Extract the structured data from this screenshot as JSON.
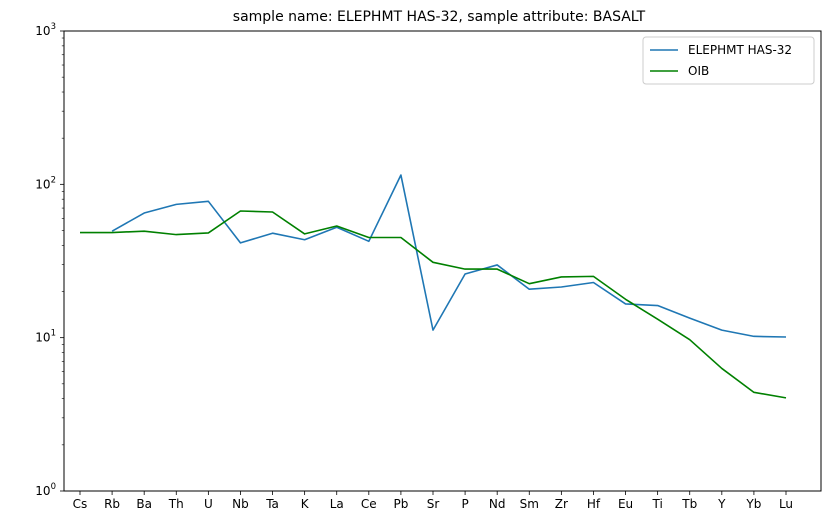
{
  "chart_data": {
    "type": "line",
    "title": "sample name: ELEPHMT HAS-32, sample attribute: BASALT",
    "xlabel": "",
    "ylabel": "",
    "yscale": "log",
    "ylim": [
      1,
      1000
    ],
    "yticks": [
      {
        "value": 1,
        "base": "10",
        "exp": "0"
      },
      {
        "value": 10,
        "base": "10",
        "exp": "1"
      },
      {
        "value": 100,
        "base": "10",
        "exp": "2"
      },
      {
        "value": 1000,
        "base": "10",
        "exp": "3"
      }
    ],
    "categories": [
      "Cs",
      "Rb",
      "Ba",
      "Th",
      "U",
      "Nb",
      "Ta",
      "K",
      "La",
      "Ce",
      "Pb",
      "Sr",
      "P",
      "Nd",
      "Sm",
      "Zr",
      "Hf",
      "Eu",
      "Ti",
      "Tb",
      "Y",
      "Yb",
      "Lu"
    ],
    "legend_position": "top-right",
    "grid": false,
    "series": [
      {
        "name": "ELEPHMT HAS-32",
        "color": "#1f77b4",
        "values": [
          null,
          49.5,
          65,
          74,
          77.5,
          41.5,
          48,
          43.5,
          52.5,
          42.5,
          115,
          11.2,
          26,
          29.8,
          20.7,
          21.4,
          22.9,
          16.6,
          16.2,
          13.4,
          11.2,
          10.2,
          10.1
        ]
      },
      {
        "name": "OIB",
        "color": "#008000",
        "values": [
          48.5,
          48.5,
          49.5,
          47,
          48.2,
          67,
          66,
          47.5,
          53.5,
          45,
          45,
          31,
          28,
          28,
          22.5,
          24.9,
          25.1,
          17.8,
          13.2,
          9.7,
          6.3,
          4.4,
          4.05
        ]
      }
    ]
  }
}
